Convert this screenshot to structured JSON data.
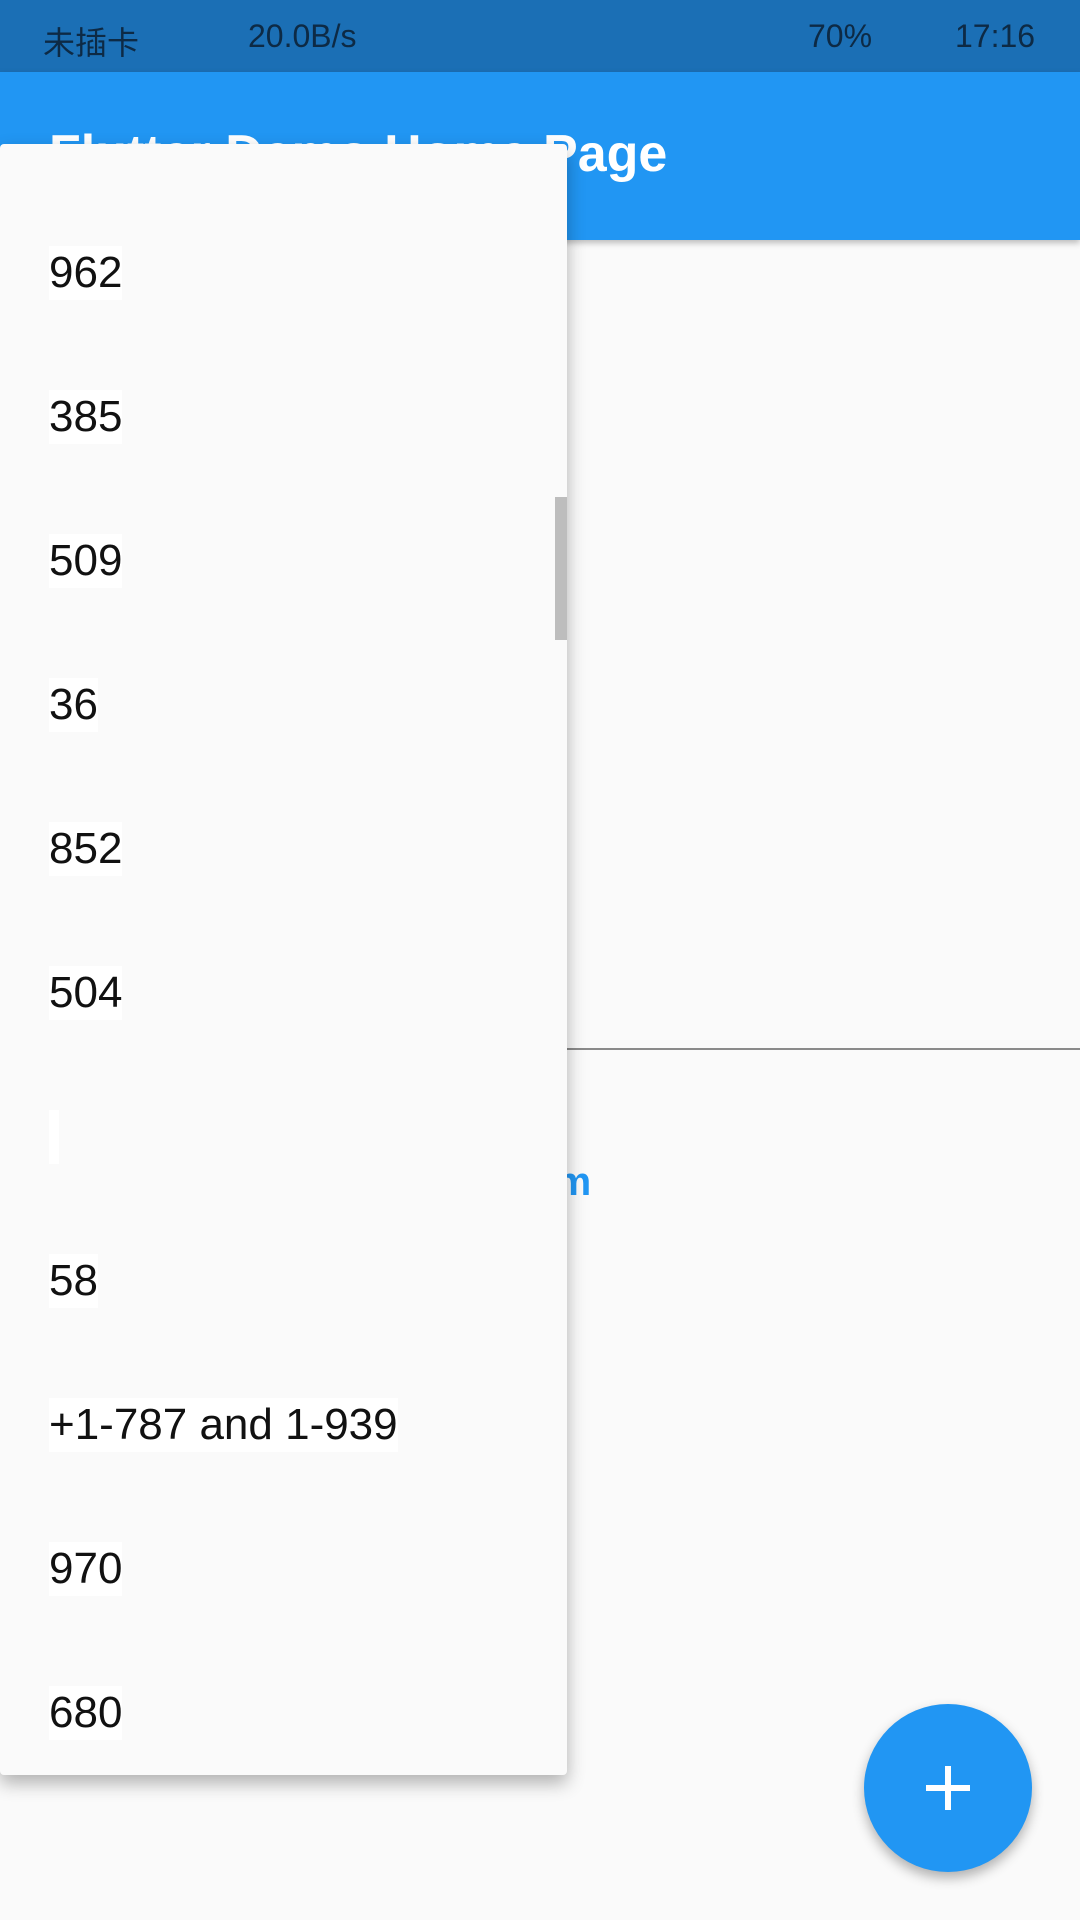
{
  "status_bar": {
    "carrier": "未插卡",
    "speed": "20.0B/s",
    "battery": "70%",
    "time": "17:16"
  },
  "app_bar": {
    "title": "Flutter Demo Home Page"
  },
  "body": {
    "link_fragment": "rm"
  },
  "menu": {
    "items": [
      "962",
      "385",
      "509",
      "36",
      "852",
      "504",
      null,
      "58",
      "+1-787 and 1-939",
      "970",
      "680"
    ]
  }
}
